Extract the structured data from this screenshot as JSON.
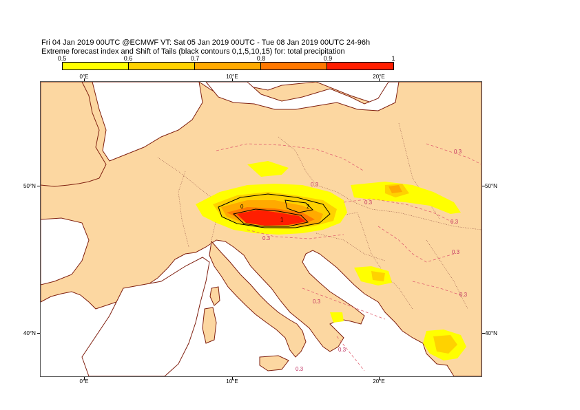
{
  "title": {
    "line1": "Fri 04 Jan 2019 00UTC @ECMWF VT: Sat 05 Jan 2019 00UTC - Tue 08 Jan 2019 00UTC  24-96h",
    "line2": "Extreme forecast index and Shift of Tails (black contours 0,1,5,10,15) for: total precipitation"
  },
  "colorbar": {
    "ticks": [
      "0.5",
      "0.6",
      "0.7",
      "0.8",
      "0.9",
      "1"
    ],
    "colors": [
      "#ffff00",
      "#ffd200",
      "#ffaa00",
      "#ff7800",
      "#ff1e00"
    ]
  },
  "axes": {
    "lon_labels": [
      "0°E",
      "10°E",
      "20°E"
    ],
    "lat_labels": [
      "50°N",
      "40°N"
    ]
  },
  "colors": {
    "land": "#fcd7a1",
    "sea": "#ffffff",
    "coast": "#7f1f0f",
    "border": "#a06050",
    "efi_dashed": "#e06070"
  },
  "map_labels": {
    "efi_03": "0.3",
    "sot_0": "0",
    "sot_1": "1",
    "sot_2": "2"
  }
}
